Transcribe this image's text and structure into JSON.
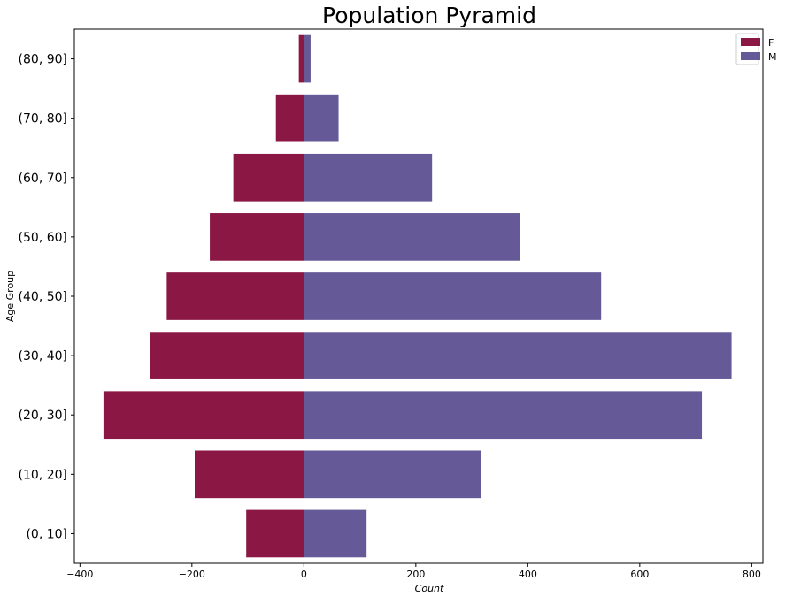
{
  "chart_data": {
    "type": "bar",
    "orientation": "horizontal",
    "title": "Population Pyramid",
    "xlabel": "Count",
    "ylabel": "Age Group",
    "categories": [
      "(0, 10]",
      "(10, 20]",
      "(20, 30]",
      "(30, 40]",
      "(40, 50]",
      "(50, 60]",
      "(60, 70]",
      "(70, 80]",
      "(80, 90]"
    ],
    "series": [
      {
        "name": "F",
        "color": "#8b1745",
        "values": [
          -103,
          -195,
          -358,
          -275,
          -245,
          -168,
          -126,
          -50,
          -9
        ]
      },
      {
        "name": "M",
        "color": "#655a97",
        "values": [
          112,
          316,
          711,
          764,
          531,
          386,
          229,
          62,
          12
        ]
      }
    ],
    "xlim": [
      -410,
      820
    ],
    "xticks": [
      -400,
      -200,
      0,
      200,
      400,
      600,
      800
    ],
    "xtick_labels": [
      "−400",
      "−200",
      "0",
      "200",
      "400",
      "600",
      "800"
    ],
    "grid": false,
    "legend_position": "top-right"
  }
}
